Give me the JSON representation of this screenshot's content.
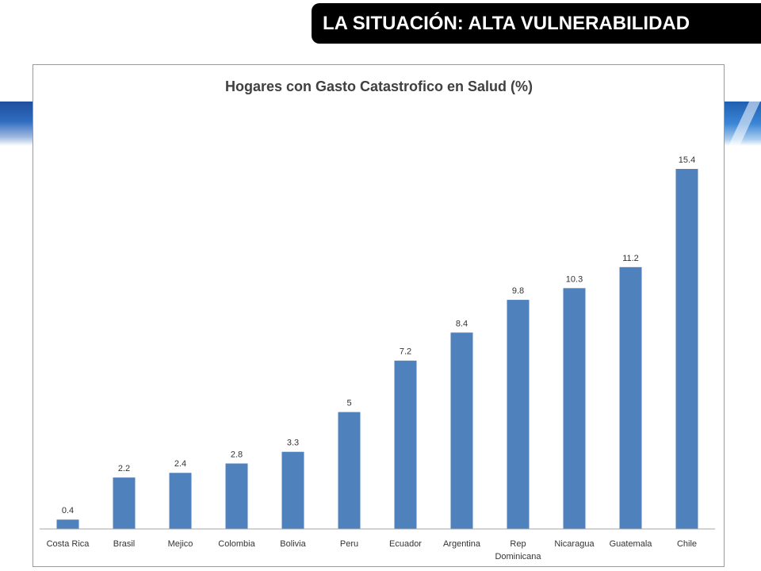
{
  "header": {
    "title": "LA SITUACIÓN: ALTA VULNERABILIDAD"
  },
  "colors": {
    "bar": "#4f81bd",
    "header_bg": "#000000",
    "header_text": "#ffffff"
  },
  "chart_data": {
    "type": "bar",
    "title": "Hogares con Gasto Catastrofico en Salud (%)",
    "xlabel": "",
    "ylabel": "",
    "grid": false,
    "legend": "none",
    "ylim": [
      0,
      15.4
    ],
    "categories": [
      [
        "Costa Rica"
      ],
      [
        "Brasil"
      ],
      [
        "Mejico"
      ],
      [
        "Colombia"
      ],
      [
        "Bolivia"
      ],
      [
        "Peru"
      ],
      [
        "Ecuador"
      ],
      [
        "Argentina"
      ],
      [
        "Rep",
        "Dominicana"
      ],
      [
        "Nicaragua"
      ],
      [
        "Guatemala"
      ],
      [
        "Chile"
      ]
    ],
    "values": [
      0.4,
      2.2,
      2.4,
      2.8,
      3.3,
      5,
      7.2,
      8.4,
      9.8,
      10.3,
      11.2,
      15.4
    ]
  }
}
